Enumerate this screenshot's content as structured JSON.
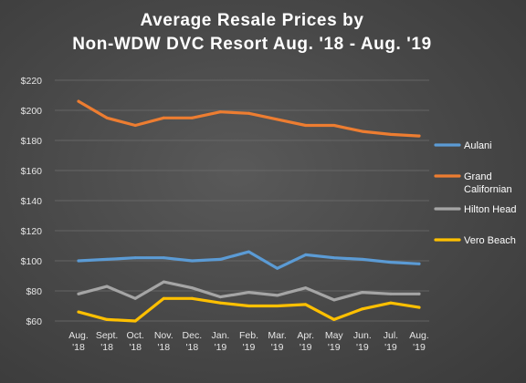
{
  "chart_data": {
    "type": "line",
    "title_lines": [
      "Average Resale Prices by",
      "Non-WDW DVC Resort Aug. '18 - Aug. '19"
    ],
    "xlabel": "",
    "ylabel": "",
    "categories": [
      [
        "Aug.",
        "'18"
      ],
      [
        "Sept.",
        "'18"
      ],
      [
        "Oct.",
        "'18"
      ],
      [
        "Nov.",
        "'18"
      ],
      [
        "Dec.",
        "'18"
      ],
      [
        "Jan.",
        "'19"
      ],
      [
        "Feb.",
        "'19"
      ],
      [
        "Mar.",
        "'19"
      ],
      [
        "Apr.",
        "'19"
      ],
      [
        "May",
        "'19"
      ],
      [
        "Jun.",
        "'19"
      ],
      [
        "Jul.",
        "'19"
      ],
      [
        "Aug.",
        "'19"
      ]
    ],
    "ylim": [
      60,
      220
    ],
    "yticks": [
      60,
      80,
      100,
      120,
      140,
      160,
      180,
      200,
      220
    ],
    "ytick_labels": [
      "$60",
      "$80",
      "$100",
      "$120",
      "$140",
      "$160",
      "$180",
      "$200",
      "$220"
    ],
    "grid": true,
    "legend_position": "right",
    "series": [
      {
        "name": "Aulani",
        "name_lines": [
          "Aulani"
        ],
        "color": "#5b9bd5",
        "values": [
          100,
          101,
          102,
          102,
          100,
          101,
          106,
          95,
          104,
          102,
          101,
          99,
          98
        ]
      },
      {
        "name": "Grand Californian",
        "name_lines": [
          "Grand",
          "Californian"
        ],
        "color": "#ed7d31",
        "values": [
          206,
          195,
          190,
          195,
          195,
          199,
          198,
          194,
          190,
          190,
          186,
          184,
          183
        ]
      },
      {
        "name": "Hilton Head",
        "name_lines": [
          "Hilton Head"
        ],
        "color": "#a5a5a5",
        "values": [
          78,
          83,
          75,
          86,
          82,
          76,
          79,
          77,
          82,
          74,
          79,
          78,
          78
        ]
      },
      {
        "name": "Vero Beach",
        "name_lines": [
          "Vero Beach"
        ],
        "color": "#ffc000",
        "values": [
          66,
          61,
          60,
          75,
          75,
          72,
          70,
          70,
          71,
          61,
          68,
          72,
          69
        ]
      }
    ]
  }
}
